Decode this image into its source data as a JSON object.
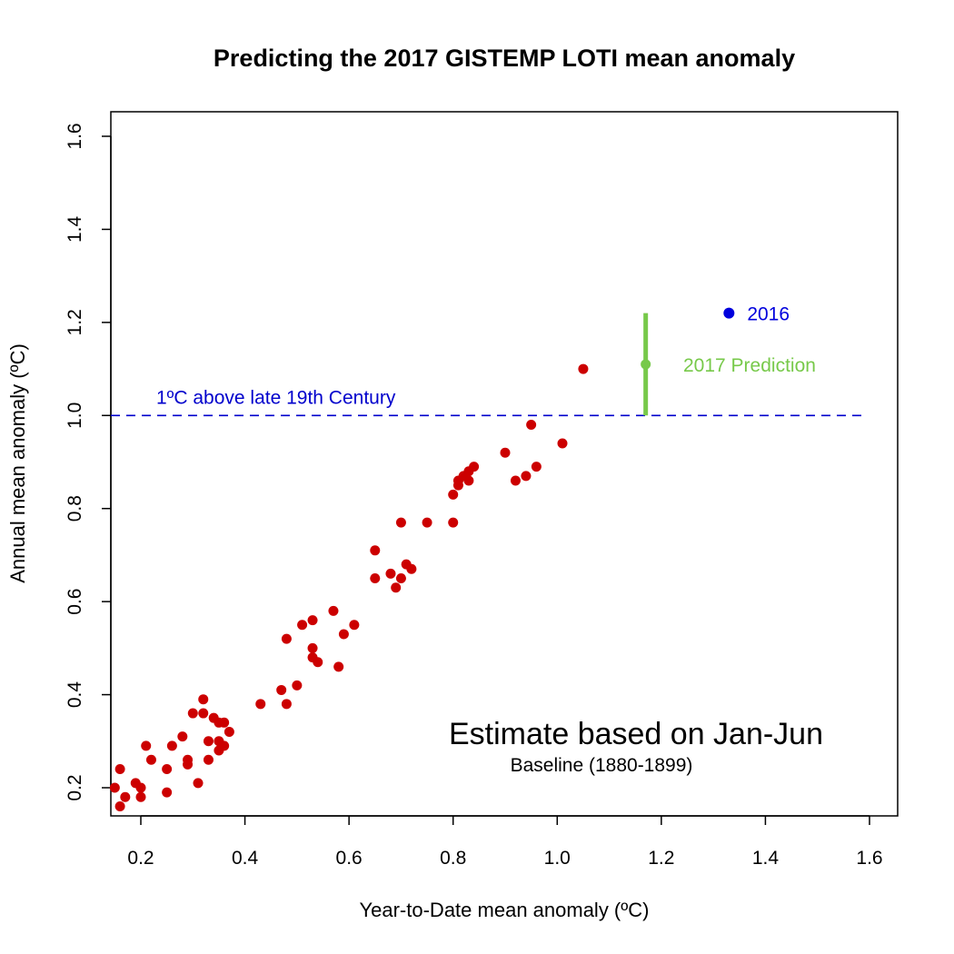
{
  "chart_data": {
    "type": "scatter",
    "title": "Predicting the 2017 GISTEMP LOTI mean anomaly",
    "xlabel": "Year-to-Date mean anomaly (ºC)",
    "ylabel": "Annual mean anomaly (ºC)",
    "xlim": [
      0.15,
      1.6
    ],
    "ylim": [
      0.14,
      1.66
    ],
    "x_ticks": [
      "0.2",
      "0.4",
      "0.6",
      "0.8",
      "1.0",
      "1.2",
      "1.4",
      "1.6"
    ],
    "y_ticks": [
      "0.2",
      "0.4",
      "0.6",
      "0.8",
      "1.0",
      "1.2",
      "1.4",
      "1.6"
    ],
    "grid": false,
    "colors": {
      "points": "#cc0000",
      "reference": "#0000cc",
      "prediction": "#77c94a",
      "highlight": "#0000dd"
    },
    "series": [
      {
        "values": [
          [
            0.15,
            0.2
          ],
          [
            0.16,
            0.24
          ],
          [
            0.16,
            0.16
          ],
          [
            0.17,
            0.18
          ],
          [
            0.19,
            0.21
          ],
          [
            0.2,
            0.18
          ],
          [
            0.2,
            0.2
          ],
          [
            0.21,
            0.29
          ],
          [
            0.22,
            0.26
          ],
          [
            0.25,
            0.19
          ],
          [
            0.25,
            0.24
          ],
          [
            0.26,
            0.29
          ],
          [
            0.28,
            0.31
          ],
          [
            0.29,
            0.25
          ],
          [
            0.29,
            0.26
          ],
          [
            0.3,
            0.36
          ],
          [
            0.31,
            0.21
          ],
          [
            0.32,
            0.36
          ],
          [
            0.32,
            0.39
          ],
          [
            0.33,
            0.26
          ],
          [
            0.33,
            0.3
          ],
          [
            0.34,
            0.35
          ],
          [
            0.35,
            0.34
          ],
          [
            0.35,
            0.28
          ],
          [
            0.35,
            0.3
          ],
          [
            0.36,
            0.34
          ],
          [
            0.36,
            0.29
          ],
          [
            0.37,
            0.32
          ],
          [
            0.43,
            0.38
          ],
          [
            0.47,
            0.41
          ],
          [
            0.48,
            0.38
          ],
          [
            0.48,
            0.52
          ],
          [
            0.5,
            0.42
          ],
          [
            0.51,
            0.55
          ],
          [
            0.53,
            0.56
          ],
          [
            0.53,
            0.5
          ],
          [
            0.53,
            0.48
          ],
          [
            0.54,
            0.47
          ],
          [
            0.57,
            0.58
          ],
          [
            0.58,
            0.46
          ],
          [
            0.59,
            0.53
          ],
          [
            0.61,
            0.55
          ],
          [
            0.65,
            0.71
          ],
          [
            0.65,
            0.65
          ],
          [
            0.68,
            0.66
          ],
          [
            0.69,
            0.63
          ],
          [
            0.7,
            0.65
          ],
          [
            0.7,
            0.77
          ],
          [
            0.71,
            0.68
          ],
          [
            0.72,
            0.67
          ],
          [
            0.75,
            0.77
          ],
          [
            0.8,
            0.77
          ],
          [
            0.8,
            0.83
          ],
          [
            0.81,
            0.85
          ],
          [
            0.81,
            0.86
          ],
          [
            0.82,
            0.87
          ],
          [
            0.83,
            0.86
          ],
          [
            0.83,
            0.88
          ],
          [
            0.84,
            0.89
          ],
          [
            0.9,
            0.92
          ],
          [
            0.92,
            0.86
          ],
          [
            0.94,
            0.87
          ],
          [
            0.95,
            0.98
          ],
          [
            0.96,
            0.89
          ],
          [
            1.01,
            0.94
          ],
          [
            1.05,
            1.1
          ]
        ]
      }
    ],
    "highlight": {
      "x": 1.33,
      "y": 1.22,
      "label": "2016"
    },
    "prediction": {
      "x": 1.17,
      "y": 1.11,
      "low": 1.0,
      "high": 1.22,
      "label": "2017 Prediction"
    },
    "reference_line": {
      "y": 1.0,
      "label": "1ºC above late 19th Century"
    },
    "annotation": {
      "main": "Estimate based on Jan-Jun",
      "sub": "Baseline (1880-1899)"
    }
  }
}
